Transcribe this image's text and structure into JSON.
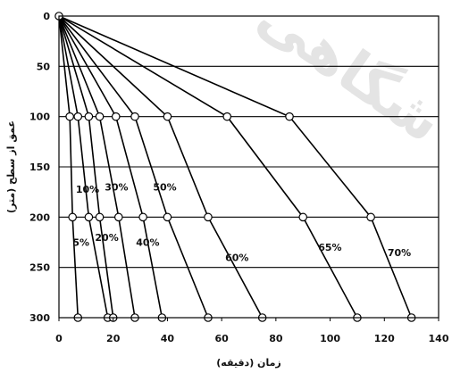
{
  "chart_data": {
    "type": "line",
    "title": "",
    "xlabel": "زمان (دقیقه)",
    "ylabel": "عمق از سطح (متر)",
    "xlim": [
      0,
      140
    ],
    "ylim": [
      0,
      300
    ],
    "y_inverted": true,
    "x_ticks": [
      0,
      20,
      40,
      60,
      80,
      100,
      120,
      140
    ],
    "y_ticks": [
      0,
      50,
      100,
      150,
      200,
      250,
      300
    ],
    "grid": {
      "horizontal": true,
      "vertical": false
    },
    "legend": "none",
    "line_color": "#000000",
    "marker_color": "#ffffff",
    "series": [
      {
        "name": "5%",
        "points": [
          [
            0,
            0
          ],
          [
            4,
            100
          ],
          [
            5,
            200
          ],
          [
            7,
            300
          ]
        ]
      },
      {
        "name": "10%",
        "points": [
          [
            0,
            0
          ],
          [
            7,
            100
          ],
          [
            11,
            200
          ],
          [
            18,
            300
          ]
        ]
      },
      {
        "name": "20%",
        "points": [
          [
            0,
            0
          ],
          [
            11,
            100
          ],
          [
            15,
            200
          ],
          [
            20,
            300
          ]
        ]
      },
      {
        "name": "30%",
        "points": [
          [
            0,
            0
          ],
          [
            15,
            100
          ],
          [
            22,
            200
          ],
          [
            28,
            300
          ]
        ]
      },
      {
        "name": "40%",
        "points": [
          [
            0,
            0
          ],
          [
            21,
            100
          ],
          [
            31,
            200
          ],
          [
            38,
            300
          ]
        ]
      },
      {
        "name": "50%",
        "points": [
          [
            0,
            0
          ],
          [
            28,
            100
          ],
          [
            40,
            200
          ],
          [
            55,
            300
          ]
        ]
      },
      {
        "name": "60%",
        "points": [
          [
            0,
            0
          ],
          [
            40,
            100
          ],
          [
            55,
            200
          ],
          [
            75,
            300
          ]
        ]
      },
      {
        "name": "65%",
        "points": [
          [
            0,
            0
          ],
          [
            62,
            100
          ],
          [
            90,
            200
          ],
          [
            110,
            300
          ]
        ]
      },
      {
        "name": "70%",
        "points": [
          [
            0,
            0
          ],
          [
            85,
            100
          ],
          [
            115,
            200
          ],
          [
            130,
            300
          ]
        ]
      }
    ],
    "annotations": [
      "5%",
      "10%",
      "20%",
      "30%",
      "40%",
      "50%",
      "60%",
      "65%",
      "70%"
    ]
  }
}
